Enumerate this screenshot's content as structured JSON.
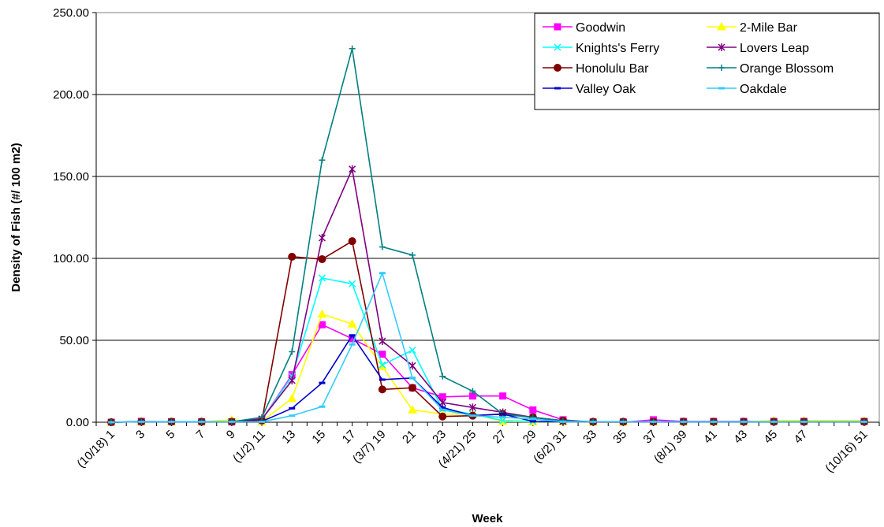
{
  "chart_data": {
    "type": "line",
    "xlabel": "Week",
    "ylabel": "Density of Fish (#/ 100 m2)",
    "ylim": [
      0,
      250
    ],
    "y_ticks": [
      "0.00",
      "50.00",
      "100.00",
      "150.00",
      "200.00",
      "250.00"
    ],
    "grid": "horizontal",
    "legend_position": "top-right",
    "x_tick_labels": [
      "(10/18) 1",
      "3",
      "5",
      "7",
      "9",
      "(1/2) 11",
      "13",
      "15",
      "17",
      "(3/7) 19",
      "21",
      "23",
      "(4/21) 25",
      "27",
      "29",
      "(6/2) 31",
      "33",
      "35",
      "37",
      "(8/1) 39",
      "41",
      "43",
      "45",
      "47",
      "(10/16) 51"
    ],
    "x": [
      1,
      3,
      5,
      7,
      9,
      11,
      13,
      15,
      17,
      19,
      21,
      23,
      25,
      27,
      29,
      31,
      33,
      35,
      37,
      39,
      41,
      43,
      45,
      47,
      51
    ],
    "series": [
      {
        "name": "Goodwin",
        "color": "#ff00ff",
        "marker": "square",
        "values": [
          0,
          0.5,
          0.3,
          0.2,
          0.2,
          1.5,
          29,
          59.5,
          51,
          41.5,
          21,
          15.5,
          16,
          16,
          7.5,
          1.5,
          0,
          0,
          1.5,
          0.5,
          0.5,
          0.5,
          0.5,
          0.5,
          0.5
        ]
      },
      {
        "name": "2-Mile Bar",
        "color": "#ffff00",
        "marker": "triangle",
        "values": [
          0,
          0.3,
          0.3,
          0.3,
          1.5,
          0.5,
          14.5,
          66,
          60,
          34,
          7.5,
          5,
          5,
          0.5,
          0.3,
          0.3,
          0,
          0,
          0.3,
          0.3,
          0.3,
          0.3,
          1,
          1,
          1
        ]
      },
      {
        "name": "Knights's Ferry",
        "color": "#00ffff",
        "marker": "x",
        "values": [
          0,
          0.3,
          0.3,
          0.3,
          0.3,
          1.5,
          28,
          88,
          84.5,
          35,
          44,
          8,
          5,
          1,
          0.5,
          0.3,
          0.3,
          0.3,
          0.3,
          0.3,
          0.3,
          0.3,
          0.3,
          0.3,
          0.3
        ]
      },
      {
        "name": "Lovers Leap",
        "color": "#800080",
        "marker": "star",
        "values": [
          0,
          0.3,
          0.3,
          0.3,
          0.3,
          2,
          25.5,
          112.5,
          154.5,
          49.5,
          34.5,
          12,
          9,
          6,
          3,
          0.5,
          0.3,
          0.3,
          0.3,
          0.3,
          0.3,
          0.3,
          0.3,
          0.3,
          0.3
        ]
      },
      {
        "name": "Honolulu Bar",
        "color": "#800000",
        "marker": "circle",
        "values": [
          0,
          0.3,
          0.3,
          0.3,
          0.3,
          1,
          101,
          99.5,
          110.5,
          20,
          21,
          3.5,
          4,
          5,
          3,
          1,
          0.3,
          0.3,
          0.3,
          0.3,
          0.3,
          0.3,
          0.3,
          0.3,
          0.3
        ]
      },
      {
        "name": "Orange Blossom",
        "color": "#008080",
        "marker": "plus",
        "values": [
          0,
          0.3,
          0.3,
          0.3,
          0.3,
          3,
          43,
          160,
          228,
          107,
          102,
          28,
          19,
          5,
          3,
          1,
          0.3,
          0.3,
          0.3,
          0.3,
          0.3,
          0.3,
          0.3,
          0.3,
          0.3
        ]
      },
      {
        "name": "Valley Oak",
        "color": "#0000cd",
        "marker": "dash",
        "values": [
          0,
          0.3,
          0.3,
          0.3,
          0.3,
          0.5,
          8.5,
          24,
          53,
          26,
          27,
          9,
          4,
          5,
          0.5,
          0.3,
          0.3,
          0.3,
          0.3,
          0.3,
          0.3,
          0.3,
          0.3,
          0.3,
          0.3
        ]
      },
      {
        "name": "Oakdale",
        "color": "#33ccff",
        "marker": "dash",
        "values": [
          0,
          0.3,
          0.3,
          0.3,
          0.3,
          0.3,
          4,
          9.5,
          47.5,
          91,
          27,
          7.5,
          4,
          3,
          2,
          0.3,
          0.3,
          0.3,
          0.3,
          0.3,
          0.3,
          0.3,
          0.3,
          0.3,
          0.3
        ]
      }
    ]
  }
}
